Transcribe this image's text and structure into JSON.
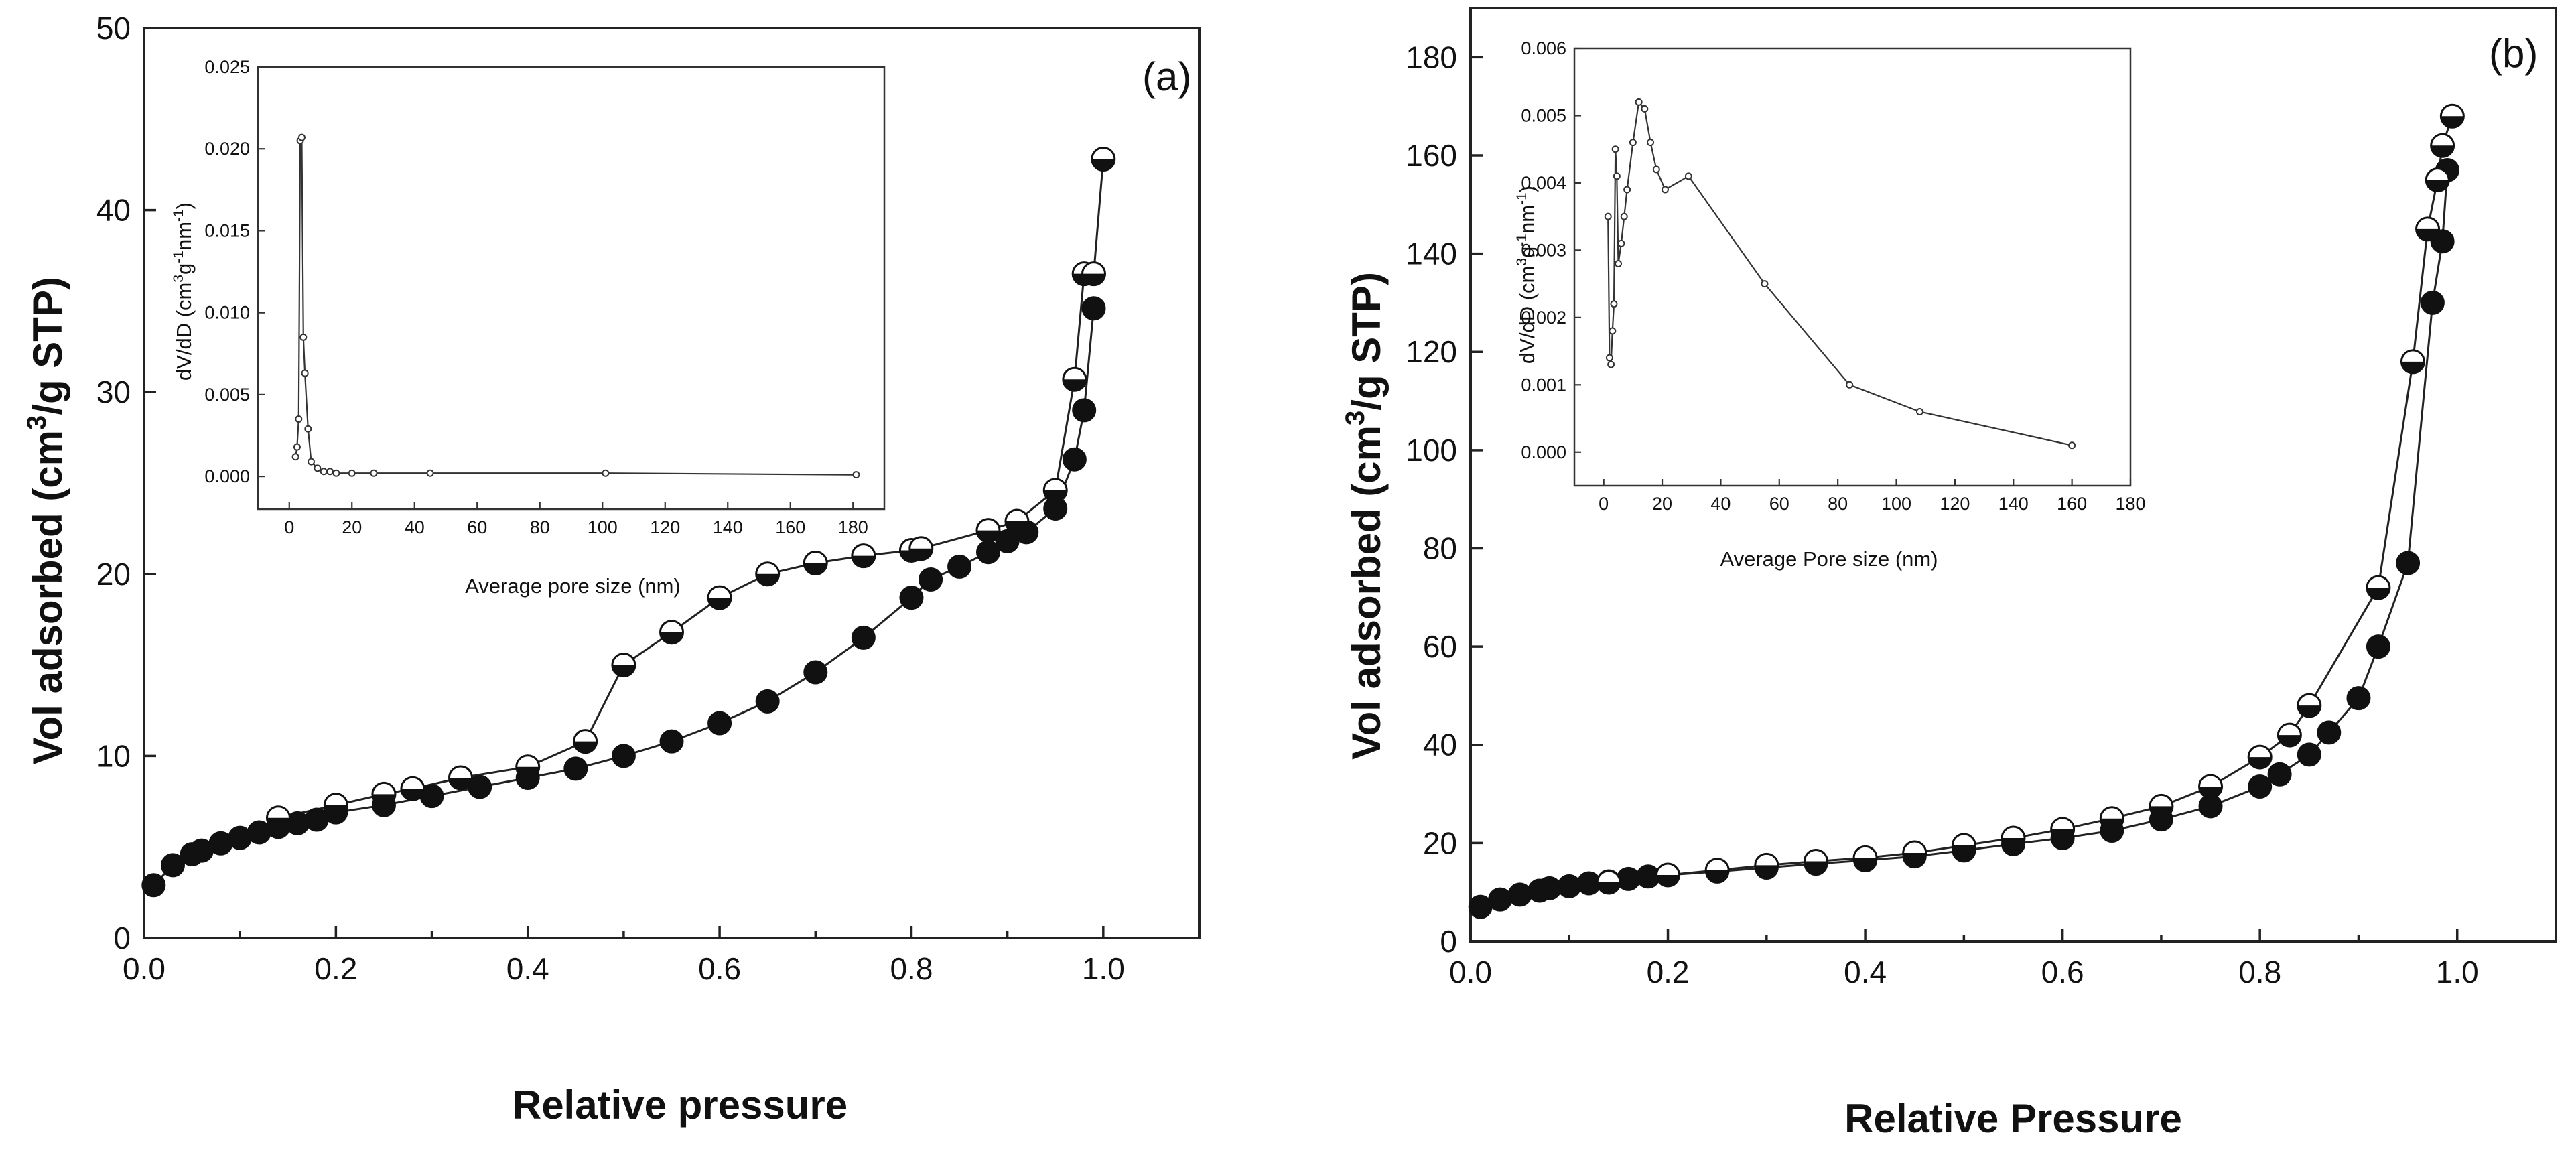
{
  "chart_data": [
    {
      "type": "scatter",
      "panel_label": "(a)",
      "xlabel": "Relative pressure",
      "ylabel": "Vol adsorbed (cm³/g STP)",
      "ylabel_parts": {
        "pre": "Vol adsorbed (cm",
        "sup": "3",
        "post": "/g STP)"
      },
      "xlim": [
        0,
        1.1
      ],
      "ylim": [
        0,
        50
      ],
      "xticks": [
        0.0,
        0.2,
        0.4,
        0.6,
        0.8,
        1.0
      ],
      "xtick_labels": [
        "0.0",
        "0.2",
        "0.4",
        "0.6",
        "0.8",
        "1.0"
      ],
      "yticks": [
        0,
        10,
        20,
        30,
        40,
        50
      ],
      "ytick_labels": [
        "0",
        "10",
        "20",
        "30",
        "40",
        "50"
      ],
      "series": [
        {
          "marker": "filled-circle",
          "x": [
            0.01,
            0.03,
            0.05,
            0.06,
            0.08,
            0.1,
            0.12,
            0.14,
            0.16,
            0.18,
            0.2,
            0.25,
            0.3,
            0.35,
            0.4,
            0.45,
            0.5,
            0.55,
            0.6,
            0.65,
            0.7,
            0.75,
            0.8,
            0.82,
            0.85,
            0.88,
            0.9,
            0.92,
            0.95,
            0.97,
            0.98,
            0.99
          ],
          "y": [
            2.9,
            4.0,
            4.6,
            4.8,
            5.2,
            5.5,
            5.8,
            6.1,
            6.3,
            6.5,
            6.9,
            7.3,
            7.8,
            8.3,
            8.8,
            9.3,
            10.0,
            10.8,
            11.8,
            13.0,
            14.6,
            16.5,
            18.7,
            19.7,
            20.4,
            21.2,
            21.8,
            22.3,
            23.6,
            26.3,
            29.0,
            34.6
          ]
        },
        {
          "marker": "half-filled-circle",
          "x": [
            0.14,
            0.2,
            0.25,
            0.28,
            0.33,
            0.4,
            0.46,
            0.5,
            0.55,
            0.6,
            0.65,
            0.7,
            0.75,
            0.8,
            0.81,
            0.88,
            0.91,
            0.95,
            0.97,
            0.98,
            0.99,
            1.0
          ],
          "y": [
            6.6,
            7.3,
            7.9,
            8.2,
            8.8,
            9.4,
            10.8,
            15.0,
            16.8,
            18.7,
            20.0,
            20.6,
            21.0,
            21.3,
            21.4,
            22.4,
            22.9,
            24.6,
            30.7,
            36.5,
            36.5,
            42.8
          ]
        }
      ],
      "inset": {
        "type": "line",
        "xlabel": "Average pore size (nm)",
        "ylabel": "dV/dD (cm³g⁻¹nm⁻¹)",
        "ylabel_parts": {
          "a": "dV/dD (cm",
          "b": "3",
          "c": "g",
          "d": "-1",
          "e": "nm",
          "f": "-1",
          "g": ")"
        },
        "xlim": [
          -10,
          190
        ],
        "ylim": [
          -0.002,
          0.025
        ],
        "xticks": [
          0,
          20,
          40,
          60,
          80,
          100,
          120,
          140,
          160,
          180
        ],
        "xtick_labels": [
          "0",
          "20",
          "40",
          "60",
          "80",
          "100",
          "120",
          "140",
          "160",
          "180"
        ],
        "yticks": [
          0.0,
          0.005,
          0.01,
          0.015,
          0.02,
          0.025
        ],
        "ytick_labels": [
          "0.000",
          "0.005",
          "0.010",
          "0.015",
          "0.020",
          "0.025"
        ],
        "x": [
          2.0,
          2.5,
          3.0,
          3.5,
          4.0,
          4.5,
          5.0,
          6.0,
          7.0,
          9.0,
          11.0,
          13.0,
          15.0,
          20.0,
          27.0,
          45.0,
          101.0,
          181.0
        ],
        "y": [
          0.0012,
          0.0018,
          0.0035,
          0.0205,
          0.0207,
          0.0085,
          0.0063,
          0.0029,
          0.0009,
          0.0005,
          0.0003,
          0.0003,
          0.0002,
          0.0002,
          0.0002,
          0.0002,
          0.0002,
          0.0001
        ]
      }
    },
    {
      "type": "scatter",
      "panel_label": "(b)",
      "xlabel": "Relative Pressure",
      "ylabel": "Vol adsorbed (cm³/g STP)",
      "ylabel_parts": {
        "pre": "Vol adsorbed (cm",
        "sup": "3",
        "post": "/g STP)"
      },
      "xlim": [
        0,
        1.1
      ],
      "ylim": [
        0,
        190
      ],
      "xticks": [
        0.0,
        0.2,
        0.4,
        0.6,
        0.8,
        1.0
      ],
      "xtick_labels": [
        "0.0",
        "0.2",
        "0.4",
        "0.6",
        "0.8",
        "1.0"
      ],
      "yticks": [
        0,
        20,
        40,
        60,
        80,
        100,
        120,
        140,
        160,
        180
      ],
      "ytick_labels": [
        "0",
        "20",
        "40",
        "60",
        "80",
        "100",
        "120",
        "140",
        "160",
        "180"
      ],
      "series": [
        {
          "marker": "filled-circle",
          "x": [
            0.01,
            0.03,
            0.05,
            0.07,
            0.08,
            0.1,
            0.12,
            0.14,
            0.16,
            0.18,
            0.2,
            0.25,
            0.3,
            0.35,
            0.4,
            0.45,
            0.5,
            0.55,
            0.6,
            0.65,
            0.7,
            0.75,
            0.8,
            0.82,
            0.85,
            0.87,
            0.9,
            0.92,
            0.95,
            0.975,
            0.985,
            0.99
          ],
          "y": [
            7,
            8.5,
            9.5,
            10.3,
            10.8,
            11.2,
            11.8,
            12.2,
            12.7,
            13.2,
            13.5,
            14.2,
            15.0,
            15.8,
            16.5,
            17.3,
            18.5,
            19.8,
            21.0,
            22.5,
            24.8,
            27.5,
            31.5,
            34.0,
            38.0,
            42.5,
            49.5,
            60.0,
            77.0,
            130.0,
            142.5,
            157.0
          ]
        },
        {
          "marker": "half-filled-circle",
          "x": [
            0.14,
            0.2,
            0.25,
            0.3,
            0.35,
            0.4,
            0.45,
            0.5,
            0.55,
            0.6,
            0.65,
            0.7,
            0.75,
            0.8,
            0.83,
            0.85,
            0.92,
            0.955,
            0.97,
            0.98,
            0.985,
            0.995
          ],
          "y": [
            12.0,
            13.5,
            14.5,
            15.5,
            16.3,
            17.0,
            18.0,
            19.5,
            21.0,
            22.8,
            25.0,
            27.5,
            31.5,
            37.5,
            42.0,
            48.0,
            72.0,
            118.0,
            145.0,
            155.0,
            162.0,
            168.0
          ]
        }
      ],
      "inset": {
        "type": "line",
        "xlabel": "Average Pore size (nm)",
        "ylabel": "dV/dD (cm³g⁻¹nm⁻¹)",
        "ylabel_parts": {
          "a": "dV/dD (cm",
          "b": "3",
          "c": "g",
          "d": "-1",
          "e": "nm",
          "f": "-1",
          "g": ")"
        },
        "xlim": [
          -10,
          180
        ],
        "ylim": [
          -0.0005,
          0.006
        ],
        "xticks": [
          0,
          20,
          40,
          60,
          80,
          100,
          120,
          140,
          160,
          180
        ],
        "xtick_labels": [
          "0",
          "20",
          "40",
          "60",
          "80",
          "100",
          "120",
          "140",
          "160",
          "180"
        ],
        "yticks": [
          0.0,
          0.001,
          0.002,
          0.003,
          0.004,
          0.005,
          0.006
        ],
        "ytick_labels": [
          "0.000",
          "0.001",
          "0.002",
          "0.003",
          "0.004",
          "0.005",
          "0.006"
        ],
        "x": [
          1.5,
          2.0,
          2.5,
          3.0,
          3.5,
          4.0,
          4.5,
          5.0,
          6.0,
          7.0,
          8.0,
          10.0,
          12.0,
          14.0,
          16.0,
          18.0,
          21.0,
          29.0,
          55.0,
          84.0,
          108.0,
          160.0
        ],
        "y": [
          0.0035,
          0.0014,
          0.0013,
          0.0018,
          0.0022,
          0.0045,
          0.0041,
          0.0028,
          0.0031,
          0.0035,
          0.0039,
          0.0046,
          0.0052,
          0.0051,
          0.0046,
          0.0042,
          0.0039,
          0.0041,
          0.0025,
          0.001,
          0.0006,
          0.0001
        ]
      }
    }
  ]
}
